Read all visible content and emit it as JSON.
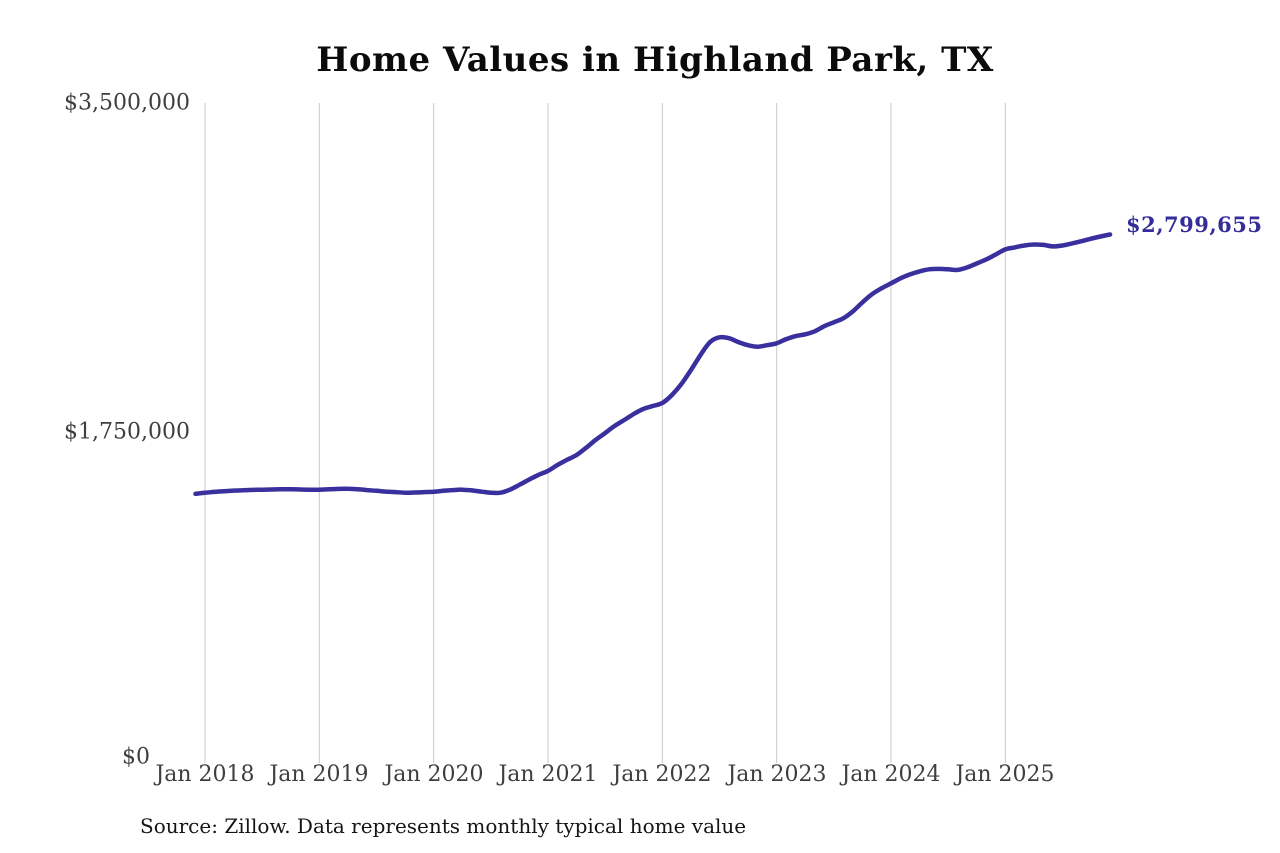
{
  "title": "Home Values in Highland Park, TX",
  "source_note": "Source: Zillow. Data represents monthly typical home value",
  "end_label": "$2,799,655",
  "colors": {
    "line": "#39309e",
    "end_label_text": "#342d99",
    "grid": "#c9c9c9",
    "axis_text": "#3f3f3f",
    "title_text": "#0b0b0b"
  },
  "y_axis": {
    "ticks": [
      {
        "label": "$3,500,000",
        "value": 3500000
      },
      {
        "label": "$1,750,000",
        "value": 1750000
      },
      {
        "label": "$0",
        "value": 0
      }
    ]
  },
  "x_axis": {
    "ticks": [
      "Jan 2018",
      "Jan 2019",
      "Jan 2020",
      "Jan 2021",
      "Jan 2022",
      "Jan 2023",
      "Jan 2024",
      "Jan 2025"
    ]
  },
  "chart_data": {
    "type": "line",
    "title": "Home Values in Highland Park, TX",
    "series_name": "Monthly typical home value",
    "xlabel": "",
    "ylabel": "",
    "ylim": [
      0,
      3500000
    ],
    "grid": "vertical-yearly",
    "legend": "none",
    "final_value": 2799655,
    "final_value_label": "$2,799,655",
    "x": [
      "2017-12",
      "2018-01",
      "2018-02",
      "2018-03",
      "2018-04",
      "2018-05",
      "2018-06",
      "2018-07",
      "2018-08",
      "2018-09",
      "2018-10",
      "2018-11",
      "2018-12",
      "2019-01",
      "2019-02",
      "2019-03",
      "2019-04",
      "2019-05",
      "2019-06",
      "2019-07",
      "2019-08",
      "2019-09",
      "2019-10",
      "2019-11",
      "2019-12",
      "2020-01",
      "2020-02",
      "2020-03",
      "2020-04",
      "2020-05",
      "2020-06",
      "2020-07",
      "2020-08",
      "2020-09",
      "2020-10",
      "2020-11",
      "2020-12",
      "2021-01",
      "2021-02",
      "2021-03",
      "2021-04",
      "2021-05",
      "2021-06",
      "2021-07",
      "2021-08",
      "2021-09",
      "2021-10",
      "2021-11",
      "2021-12",
      "2022-01",
      "2022-02",
      "2022-03",
      "2022-04",
      "2022-05",
      "2022-06",
      "2022-07",
      "2022-08",
      "2022-09",
      "2022-10",
      "2022-11",
      "2022-12",
      "2023-01",
      "2023-02",
      "2023-03",
      "2023-04",
      "2023-05",
      "2023-06",
      "2023-07",
      "2023-08",
      "2023-09",
      "2023-10",
      "2023-11",
      "2023-12",
      "2024-01",
      "2024-02",
      "2024-03",
      "2024-04",
      "2024-05",
      "2024-06",
      "2024-07",
      "2024-08",
      "2024-09",
      "2024-10",
      "2024-11",
      "2024-12",
      "2025-01",
      "2025-02",
      "2025-03",
      "2025-04",
      "2025-05",
      "2025-06",
      "2025-07",
      "2025-08",
      "2025-09",
      "2025-10",
      "2025-11",
      "2025-12"
    ],
    "values": [
      1418000,
      1424000,
      1428000,
      1432000,
      1435000,
      1437000,
      1439000,
      1440000,
      1441000,
      1442000,
      1442000,
      1441000,
      1440000,
      1440000,
      1442000,
      1444000,
      1445000,
      1442000,
      1438000,
      1434000,
      1430000,
      1427000,
      1424000,
      1425000,
      1427000,
      1429000,
      1434000,
      1438000,
      1440000,
      1436000,
      1430000,
      1424000,
      1424000,
      1440000,
      1466000,
      1493000,
      1519000,
      1540000,
      1572000,
      1599000,
      1625000,
      1663000,
      1705000,
      1742000,
      1780000,
      1811000,
      1843000,
      1870000,
      1886000,
      1902000,
      1944000,
      2003000,
      2077000,
      2157000,
      2226000,
      2252000,
      2247000,
      2226000,
      2210000,
      2202000,
      2210000,
      2220000,
      2242000,
      2258000,
      2268000,
      2284000,
      2311000,
      2332000,
      2353000,
      2390000,
      2438000,
      2481000,
      2513000,
      2539000,
      2566000,
      2587000,
      2603000,
      2614000,
      2616000,
      2614000,
      2611000,
      2624000,
      2645000,
      2667000,
      2693000,
      2720000,
      2731000,
      2741000,
      2746000,
      2744000,
      2736000,
      2741000,
      2752000,
      2764000,
      2777000,
      2789000,
      2799655
    ]
  }
}
